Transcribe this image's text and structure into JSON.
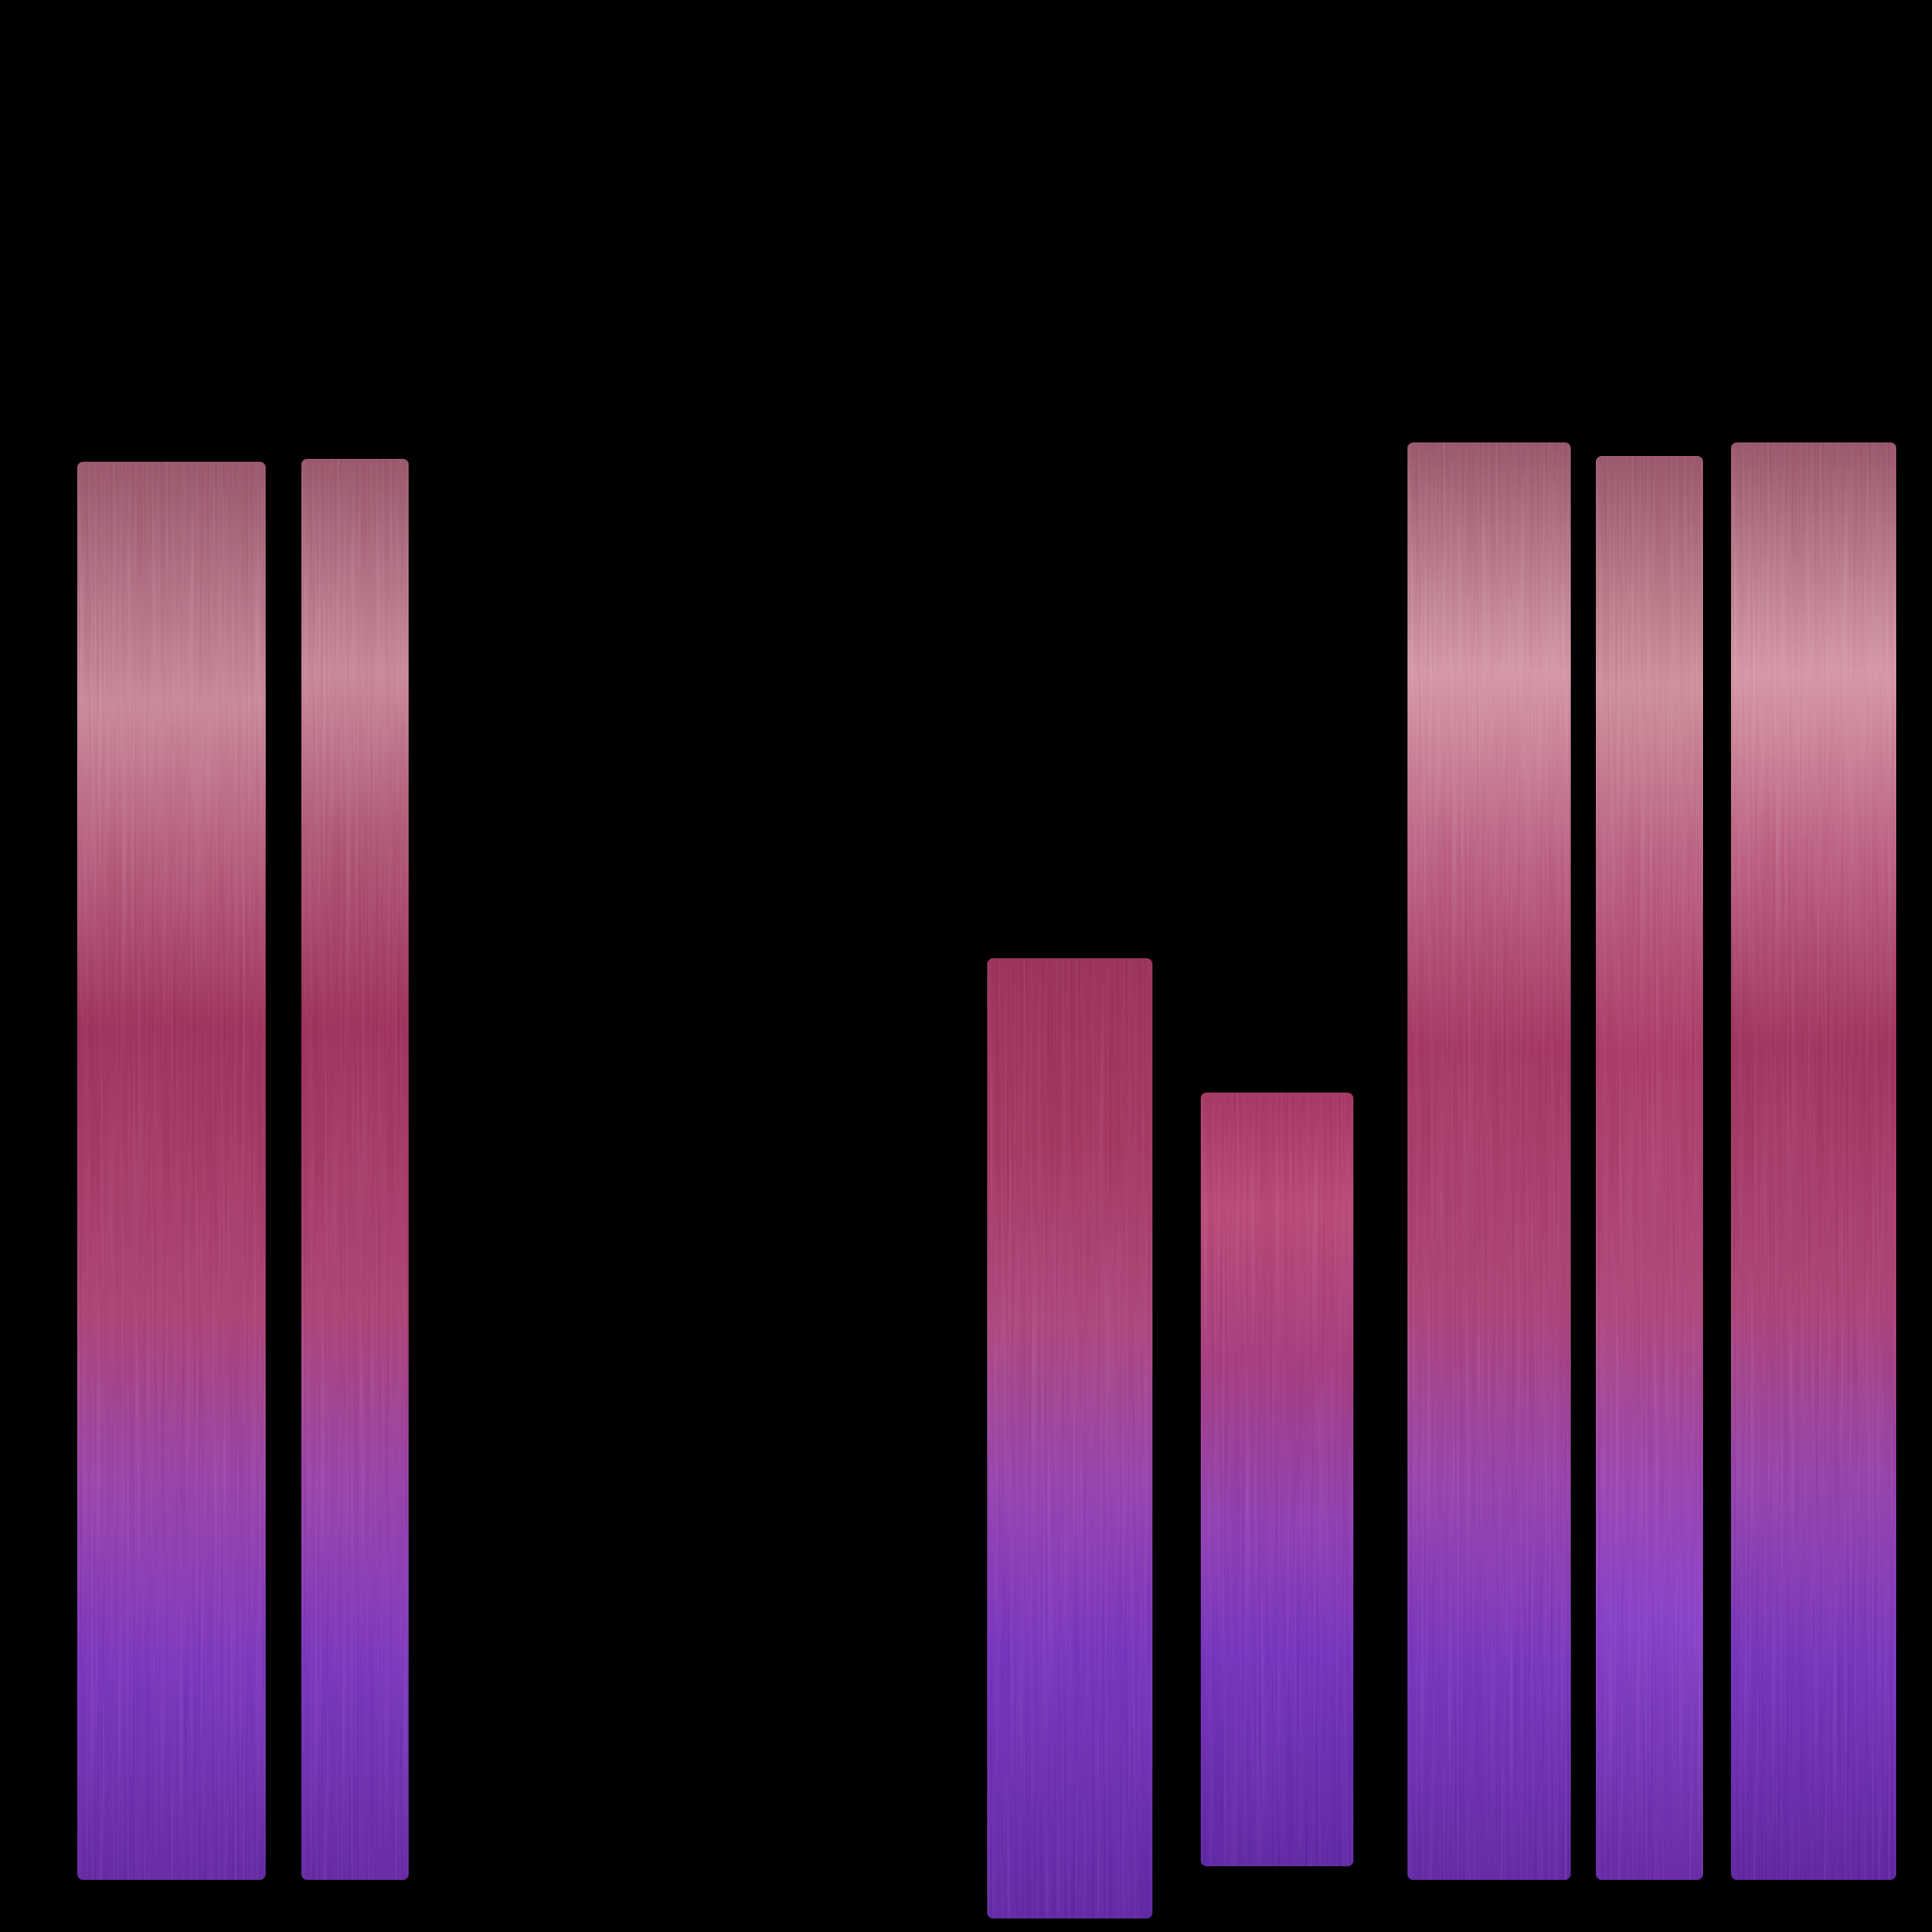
{
  "background_color": "#000000",
  "swatches": [
    {
      "name": "swatch-1",
      "stops": [
        {
          "color": "#8e4c5f",
          "at": 0
        },
        {
          "color": "#c27c8f",
          "at": 0.17
        },
        {
          "color": "#b25a76",
          "at": 0.26
        },
        {
          "color": "#932a52",
          "at": 0.4
        },
        {
          "color": "#a23a68",
          "at": 0.6
        },
        {
          "color": "#8d3aa0",
          "at": 0.72
        },
        {
          "color": "#6f2fb6",
          "at": 0.85
        },
        {
          "color": "#5b239a",
          "at": 1
        }
      ]
    },
    {
      "name": "swatch-2",
      "stops": [
        {
          "color": "#8e4c5f",
          "at": 0
        },
        {
          "color": "#c27c8f",
          "at": 0.15
        },
        {
          "color": "#a8506c",
          "at": 0.26
        },
        {
          "color": "#932a52",
          "at": 0.4
        },
        {
          "color": "#a23a68",
          "at": 0.6
        },
        {
          "color": "#8d3aa0",
          "at": 0.72
        },
        {
          "color": "#6f2fb6",
          "at": 0.85
        },
        {
          "color": "#5b239a",
          "at": 1
        }
      ]
    },
    {
      "name": "swatch-3",
      "stops": [
        {
          "color": "#8f2a4f",
          "at": 0
        },
        {
          "color": "#9a3058",
          "at": 0.2
        },
        {
          "color": "#a33e70",
          "at": 0.38
        },
        {
          "color": "#8a3aa6",
          "at": 0.55
        },
        {
          "color": "#6c2db6",
          "at": 0.72
        },
        {
          "color": "#57229a",
          "at": 1
        }
      ]
    },
    {
      "name": "swatch-4",
      "stops": [
        {
          "color": "#9a2e57",
          "at": 0
        },
        {
          "color": "#b0406a",
          "at": 0.15
        },
        {
          "color": "#9b3472",
          "at": 0.35
        },
        {
          "color": "#8437a8",
          "at": 0.55
        },
        {
          "color": "#6a2cb6",
          "at": 0.72
        },
        {
          "color": "#55219a",
          "at": 1
        }
      ]
    },
    {
      "name": "swatch-5",
      "stops": [
        {
          "color": "#8e4c5f",
          "at": 0
        },
        {
          "color": "#cf8c9c",
          "at": 0.16
        },
        {
          "color": "#b65a7a",
          "at": 0.28
        },
        {
          "color": "#9a2f58",
          "at": 0.42
        },
        {
          "color": "#a23a6a",
          "at": 0.6
        },
        {
          "color": "#8c3aa2",
          "at": 0.72
        },
        {
          "color": "#6c2eb6",
          "at": 0.85
        },
        {
          "color": "#59229a",
          "at": 1
        }
      ]
    },
    {
      "name": "swatch-6",
      "stops": [
        {
          "color": "#8e4c5f",
          "at": 0
        },
        {
          "color": "#c7848f",
          "at": 0.16
        },
        {
          "color": "#b45878",
          "at": 0.28
        },
        {
          "color": "#a0325c",
          "at": 0.42
        },
        {
          "color": "#a53e6e",
          "at": 0.6
        },
        {
          "color": "#903ca8",
          "at": 0.72
        },
        {
          "color": "#7a38c2",
          "at": 0.82
        },
        {
          "color": "#5c239c",
          "at": 1
        }
      ]
    },
    {
      "name": "swatch-7",
      "stops": [
        {
          "color": "#8e4c5f",
          "at": 0
        },
        {
          "color": "#d08c9c",
          "at": 0.16
        },
        {
          "color": "#b65878",
          "at": 0.28
        },
        {
          "color": "#952c54",
          "at": 0.42
        },
        {
          "color": "#a23a6a",
          "at": 0.6
        },
        {
          "color": "#8a3aa2",
          "at": 0.72
        },
        {
          "color": "#6a2db4",
          "at": 0.85
        },
        {
          "color": "#561f96",
          "at": 1
        }
      ]
    }
  ]
}
